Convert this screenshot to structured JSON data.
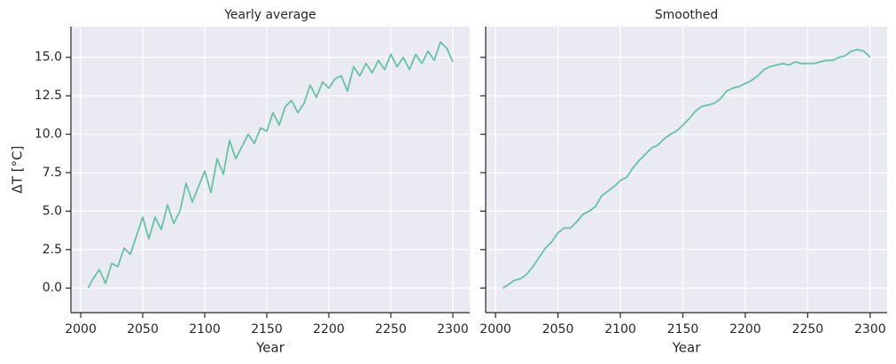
{
  "chart_data": [
    {
      "type": "line",
      "title": "Yearly average",
      "xlabel": "Year",
      "ylabel": "ΔT [°C]",
      "x": [
        2006,
        2010,
        2015,
        2020,
        2025,
        2030,
        2035,
        2040,
        2045,
        2050,
        2055,
        2060,
        2065,
        2070,
        2075,
        2080,
        2085,
        2090,
        2095,
        2100,
        2105,
        2110,
        2115,
        2120,
        2125,
        2130,
        2135,
        2140,
        2145,
        2150,
        2155,
        2160,
        2165,
        2170,
        2175,
        2180,
        2185,
        2190,
        2195,
        2200,
        2205,
        2210,
        2215,
        2220,
        2225,
        2230,
        2235,
        2240,
        2245,
        2250,
        2255,
        2260,
        2265,
        2270,
        2275,
        2280,
        2285,
        2290,
        2295,
        2300
      ],
      "series": [
        {
          "color": "#66c2a5",
          "values": [
            0.0,
            0.6,
            1.2,
            0.3,
            1.6,
            1.4,
            2.6,
            2.2,
            3.4,
            4.6,
            3.2,
            4.6,
            3.8,
            5.4,
            4.2,
            5.0,
            6.8,
            5.6,
            6.6,
            7.6,
            6.2,
            8.4,
            7.4,
            9.6,
            8.4,
            9.2,
            10.0,
            9.4,
            10.4,
            10.2,
            11.4,
            10.6,
            11.8,
            12.2,
            11.4,
            12.0,
            13.2,
            12.4,
            13.4,
            13.0,
            13.6,
            13.8,
            12.8,
            14.4,
            13.8,
            14.6,
            14.0,
            14.8,
            14.2,
            15.2,
            14.4,
            15.0,
            14.2,
            15.2,
            14.6,
            15.4,
            14.8,
            16.0,
            15.6,
            14.7
          ]
        }
      ],
      "xlim": [
        1992.1,
        2313.6
      ],
      "xticks": [
        2000,
        2050,
        2100,
        2150,
        2200,
        2250,
        2300
      ],
      "ylim": [
        -1.6,
        17.0
      ],
      "yticks": [
        {
          "value": 0,
          "label": "0.0"
        },
        2.5,
        {
          "value": 5,
          "label": "5.0"
        },
        7.5,
        {
          "value": 10,
          "label": "10.0"
        },
        12.5,
        {
          "value": 15,
          "label": "15.0"
        }
      ],
      "grid": true,
      "ytick_labels": true
    },
    {
      "type": "line",
      "title": "Smoothed",
      "xlabel": "Year",
      "x": [
        2006,
        2010,
        2015,
        2020,
        2025,
        2030,
        2035,
        2040,
        2045,
        2050,
        2055,
        2060,
        2065,
        2070,
        2075,
        2080,
        2085,
        2090,
        2095,
        2100,
        2105,
        2110,
        2115,
        2120,
        2125,
        2130,
        2135,
        2140,
        2145,
        2150,
        2155,
        2160,
        2165,
        2170,
        2175,
        2180,
        2185,
        2190,
        2195,
        2200,
        2205,
        2210,
        2215,
        2220,
        2225,
        2230,
        2235,
        2240,
        2245,
        2250,
        2255,
        2260,
        2265,
        2270,
        2275,
        2280,
        2285,
        2290,
        2295,
        2300
      ],
      "series": [
        {
          "color": "#66c2a5",
          "values": [
            0.0,
            0.2,
            0.5,
            0.6,
            0.9,
            1.4,
            2.0,
            2.6,
            3.0,
            3.6,
            3.9,
            3.9,
            4.3,
            4.8,
            5.0,
            5.3,
            6.0,
            6.3,
            6.6,
            7.0,
            7.2,
            7.8,
            8.3,
            8.7,
            9.1,
            9.3,
            9.7,
            10.0,
            10.2,
            10.6,
            11.0,
            11.5,
            11.8,
            11.9,
            12.0,
            12.3,
            12.8,
            13.0,
            13.1,
            13.3,
            13.5,
            13.8,
            14.2,
            14.4,
            14.5,
            14.6,
            14.5,
            14.7,
            14.6,
            14.6,
            14.6,
            14.7,
            14.8,
            14.8,
            15.0,
            15.1,
            15.4,
            15.5,
            15.4,
            15.0
          ]
        }
      ],
      "xlim": [
        1992.1,
        2313.6
      ],
      "xticks": [
        2000,
        2050,
        2100,
        2150,
        2200,
        2250,
        2300
      ],
      "ylim": [
        -1.6,
        17.0
      ],
      "yticks": [
        {
          "value": 0,
          "label": "0.0"
        },
        2.5,
        {
          "value": 5,
          "label": "5.0"
        },
        7.5,
        {
          "value": 10,
          "label": "10.0"
        },
        12.5,
        {
          "value": 15,
          "label": "15.0"
        }
      ],
      "grid": true,
      "ytick_labels": false
    }
  ]
}
